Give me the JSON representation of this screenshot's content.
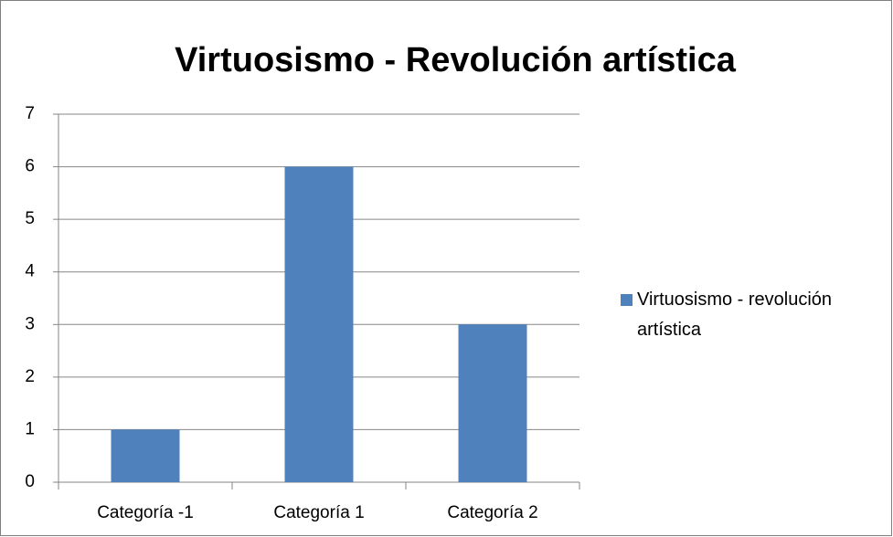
{
  "chart_data": {
    "type": "bar",
    "title": "Virtuosismo - Revolución artística",
    "categories": [
      "Categoría -1",
      "Categoría 1",
      "Categoría 2"
    ],
    "series": [
      {
        "name": "Virtuosismo - revolución artística",
        "color": "#4f81bd",
        "values": [
          1,
          6,
          3
        ]
      }
    ],
    "ylim": [
      0,
      7
    ],
    "yticks": [
      0,
      1,
      2,
      3,
      4,
      5,
      6,
      7
    ],
    "grid": true,
    "legend": "right"
  }
}
